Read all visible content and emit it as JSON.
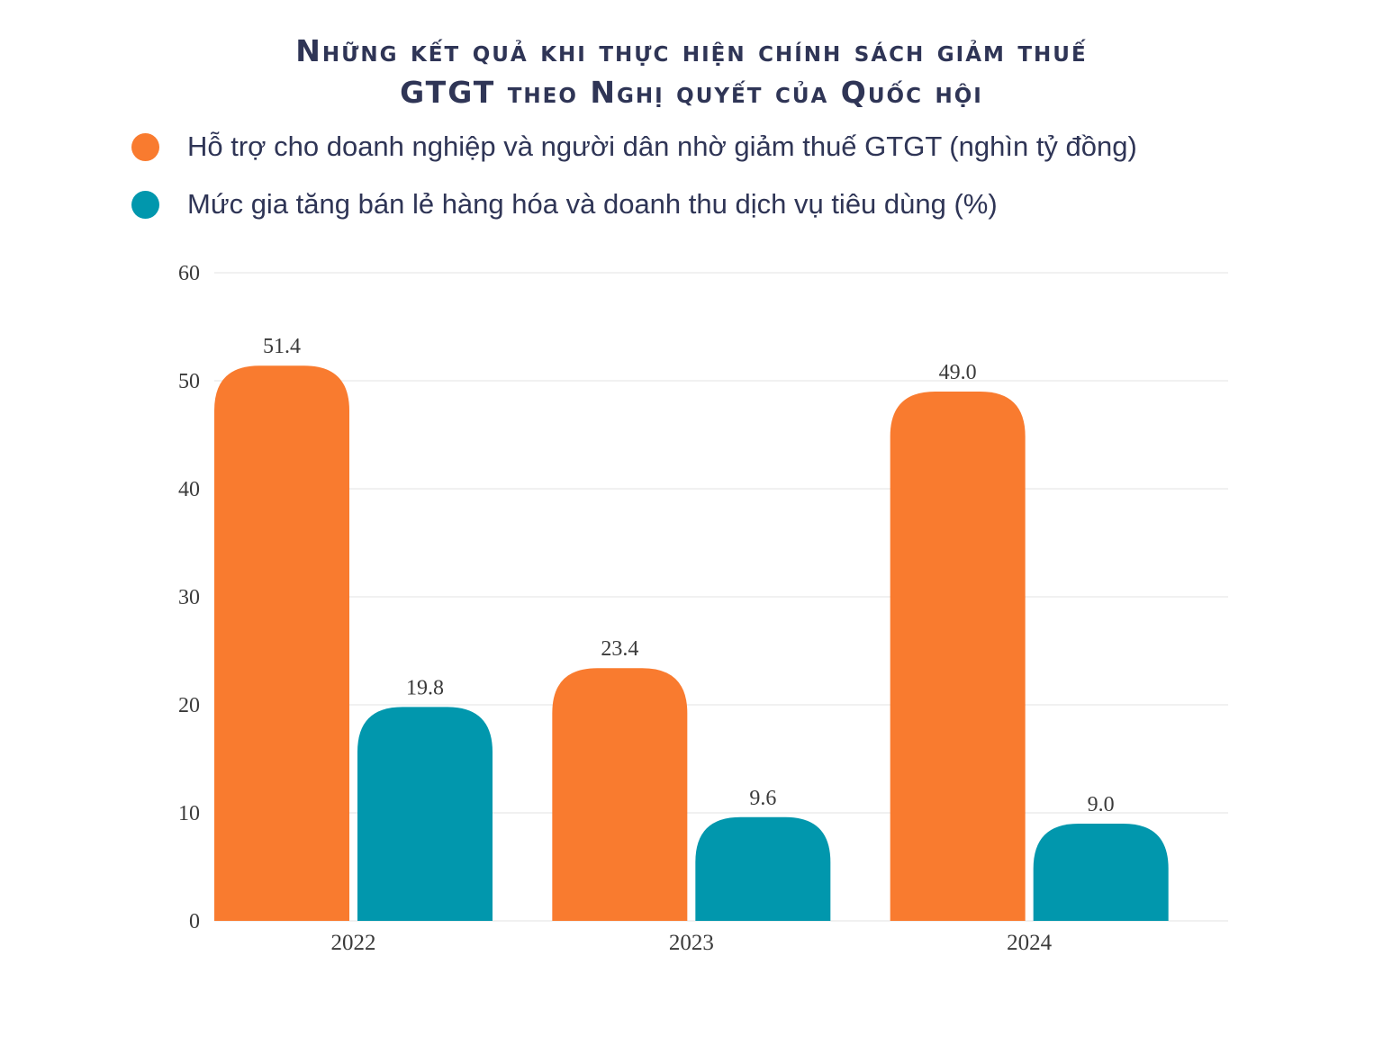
{
  "title": {
    "line1": "Những kết quả khi thực hiện chính sách giảm thuế",
    "line2": "GTGT theo Nghị quyết của Quốc hội"
  },
  "colors": {
    "series1": "#f97b2f",
    "series2": "#0197ad",
    "title": "#2f3556",
    "grid": "#e3e3e3"
  },
  "chart_data": {
    "type": "bar",
    "categories": [
      "2022",
      "2023",
      "2024"
    ],
    "series": [
      {
        "name": "Hỗ trợ cho doanh nghiệp và người dân nhờ giảm thuế GTGT (nghìn tỷ đồng)",
        "values": [
          51.4,
          23.4,
          49.0
        ],
        "labels": [
          "51.4",
          "23.4",
          "49.0"
        ]
      },
      {
        "name": "Mức gia tăng bán lẻ hàng hóa và doanh thu dịch vụ tiêu dùng (%)",
        "values": [
          19.8,
          9.6,
          9.0
        ],
        "labels": [
          "19.8",
          "9.6",
          "9.0"
        ]
      }
    ],
    "yticks": [
      "0",
      "10",
      "20",
      "30",
      "40",
      "50",
      "60"
    ],
    "ylim": [
      0,
      60
    ],
    "grid": true,
    "legend": "top-left"
  }
}
